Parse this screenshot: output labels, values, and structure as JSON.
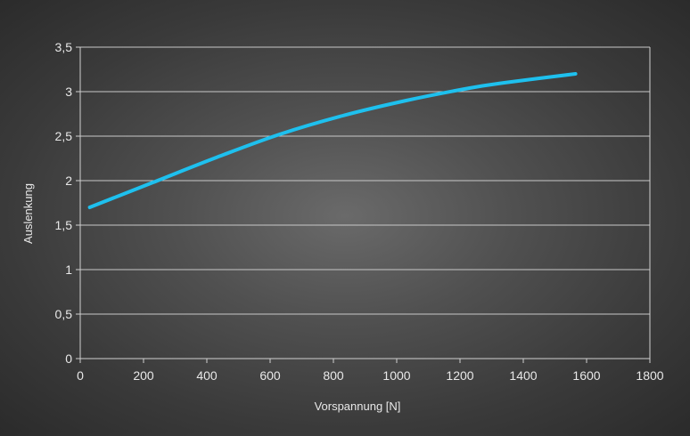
{
  "chart_data": {
    "type": "line",
    "title": "",
    "xlabel": "Vorspannung [N]",
    "ylabel": "Auslenkung",
    "xlim": [
      0,
      1800
    ],
    "ylim": [
      0,
      3.5
    ],
    "x_ticks": [
      "0",
      "200",
      "400",
      "600",
      "800",
      "1000",
      "1200",
      "1400",
      "1600",
      "1800"
    ],
    "y_ticks": [
      "0",
      "0,5",
      "1",
      "1,5",
      "2",
      "2,5",
      "3",
      "3,5"
    ],
    "grid": {
      "horizontal": true,
      "vertical": false
    },
    "legend": "none",
    "series": [
      {
        "color": "#1ec0ee",
        "x": [
          30,
          230,
          430,
          630,
          830,
          1030,
          1230,
          1340,
          1565
        ],
        "y": [
          1.7,
          1.98,
          2.26,
          2.52,
          2.73,
          2.9,
          3.04,
          3.1,
          3.2
        ]
      }
    ]
  },
  "colors": {
    "grid": "#c8c8c8",
    "axis": "#d0d0d0",
    "line": "#1ec0ee"
  }
}
